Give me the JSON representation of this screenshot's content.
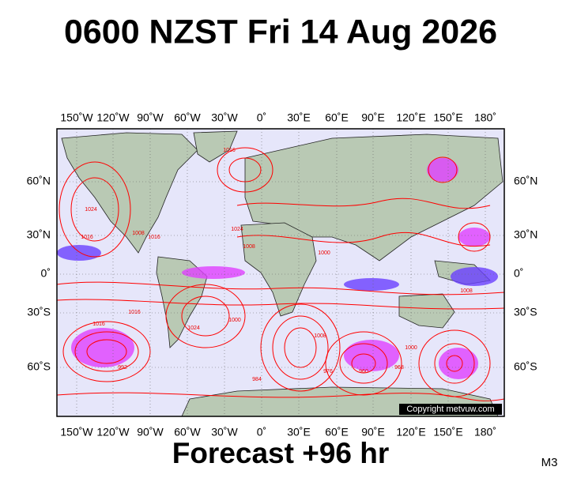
{
  "header": {
    "title": "0600 NZST Fri 14 Aug 2026"
  },
  "map": {
    "longitude_labels": [
      "150˚W",
      "120˚W",
      "90˚W",
      "60˚W",
      "30˚W",
      "0˚",
      "30˚E",
      "60˚E",
      "90˚E",
      "120˚E",
      "150˚E",
      "180˚"
    ],
    "latitude_labels": [
      "60˚N",
      "30˚N",
      "0˚",
      "30˚S",
      "60˚S"
    ],
    "isobar_labels": [
      "1016",
      "1024",
      "1016",
      "1008",
      "1024",
      "1016",
      "1000",
      "1008",
      "1016",
      "1024",
      "1000",
      "1008",
      "992",
      "984",
      "976",
      "968",
      "960",
      "1000",
      "1016",
      "1008"
    ],
    "copyright": "Copyright metvuw.com"
  },
  "footer": {
    "forecast": "Forecast +96 hr",
    "model": "M3"
  }
}
